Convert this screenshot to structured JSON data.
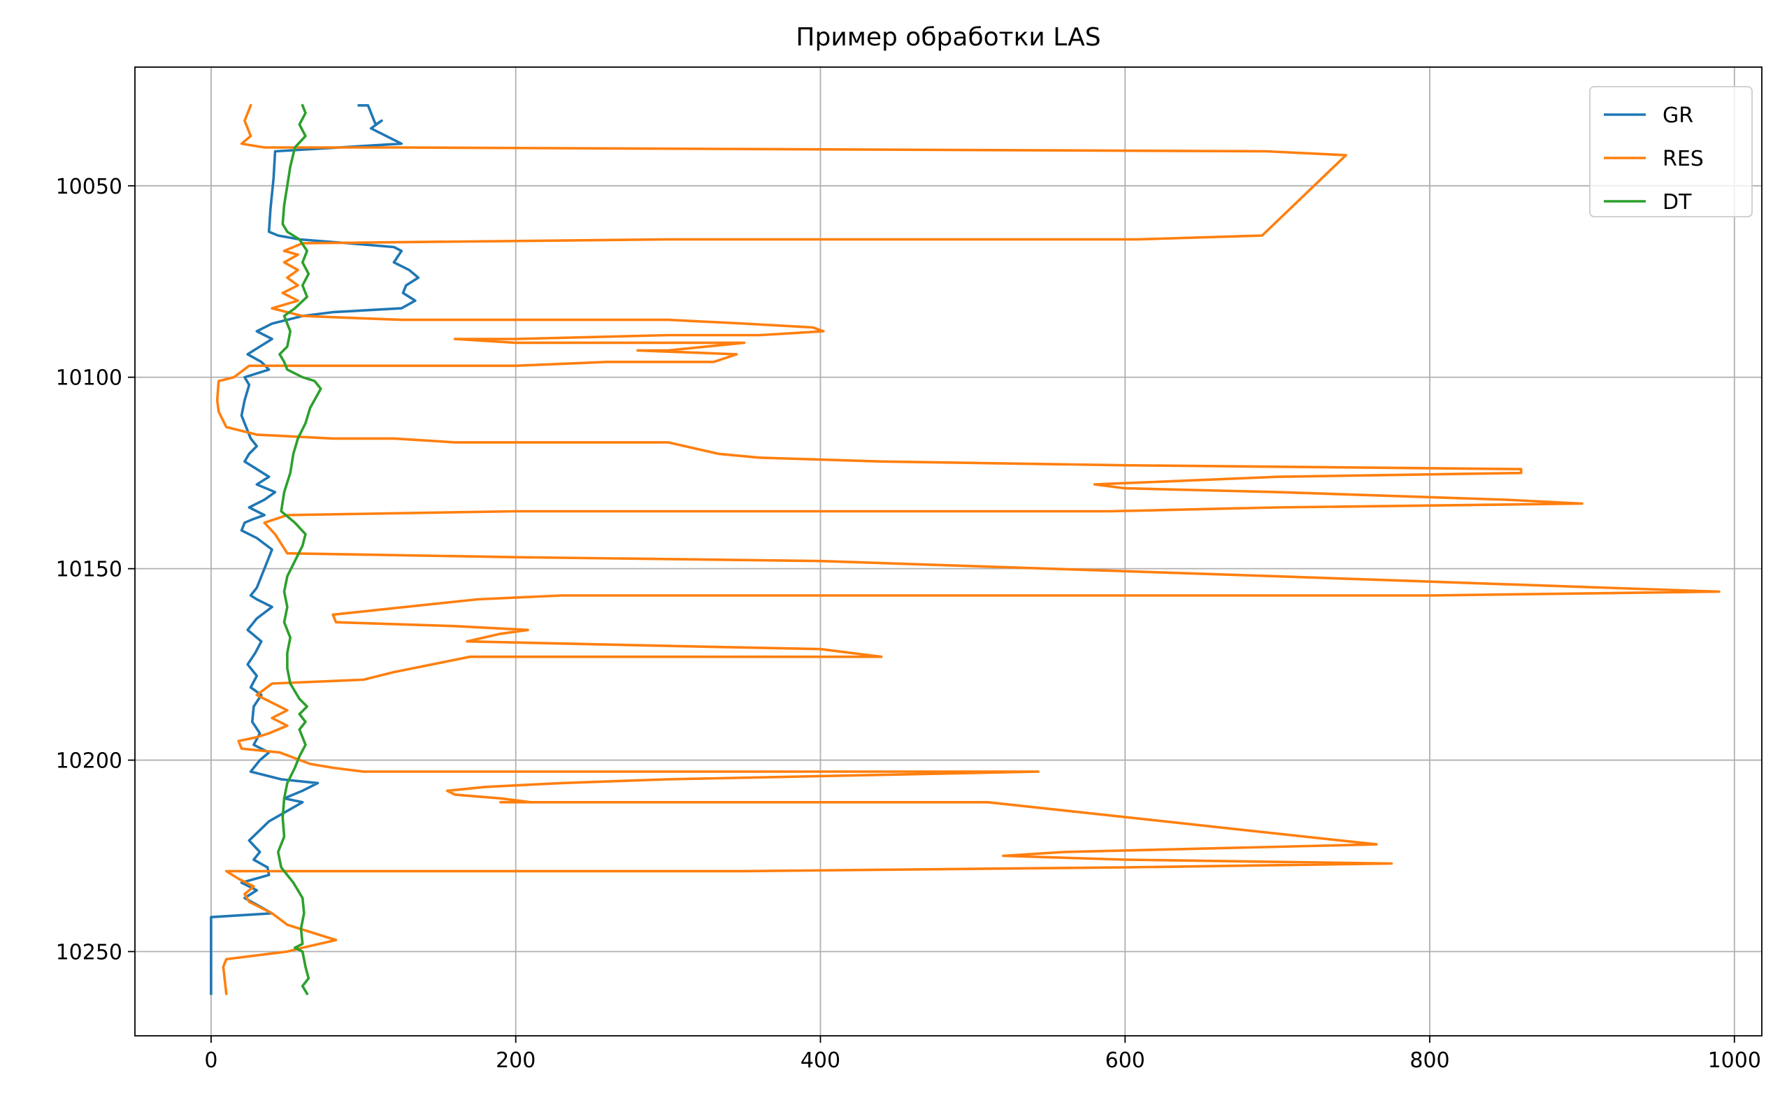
{
  "chart_data": {
    "type": "line",
    "title": "Пример обработки LAS",
    "xlabel": "",
    "ylabel": "",
    "xlim": [
      -50,
      1018
    ],
    "ylim": [
      10272,
      10019
    ],
    "y_inverted": true,
    "x_ticks": [
      0,
      200,
      400,
      600,
      800,
      1000
    ],
    "y_ticks": [
      10050,
      10100,
      10150,
      10200,
      10250
    ],
    "grid": true,
    "legend_position": "upper right",
    "colors": {
      "GR": "#1f77b4",
      "RES": "#ff7f0e",
      "DT": "#2ca02c",
      "grid": "#b0b0b0"
    },
    "series": [
      {
        "name": "GR",
        "points": [
          [
            97,
            10029
          ],
          [
            103,
            10029
          ],
          [
            108,
            10034
          ],
          [
            112,
            10033
          ],
          [
            105,
            10035
          ],
          [
            125,
            10039
          ],
          [
            42,
            10041
          ],
          [
            41,
            10048
          ],
          [
            40,
            10052
          ],
          [
            39,
            10056
          ],
          [
            38,
            10062
          ],
          [
            44,
            10063
          ],
          [
            58,
            10064
          ],
          [
            90,
            10065
          ],
          [
            120,
            10066
          ],
          [
            125,
            10067
          ],
          [
            120,
            10070
          ],
          [
            130,
            10072
          ],
          [
            136,
            10074
          ],
          [
            128,
            10076
          ],
          [
            126,
            10078
          ],
          [
            134,
            10080
          ],
          [
            125,
            10082
          ],
          [
            80,
            10083
          ],
          [
            60,
            10084
          ],
          [
            40,
            10086
          ],
          [
            30,
            10088
          ],
          [
            40,
            10090
          ],
          [
            32,
            10092
          ],
          [
            24,
            10094
          ],
          [
            33,
            10096
          ],
          [
            38,
            10098
          ],
          [
            30,
            10099
          ],
          [
            22,
            10100
          ],
          [
            25,
            10102
          ],
          [
            22,
            10106
          ],
          [
            20,
            10110
          ],
          [
            24,
            10114
          ],
          [
            26,
            10116
          ],
          [
            30,
            10118
          ],
          [
            25,
            10120
          ],
          [
            22,
            10122
          ],
          [
            30,
            10124
          ],
          [
            38,
            10126
          ],
          [
            30,
            10128
          ],
          [
            42,
            10130
          ],
          [
            35,
            10132
          ],
          [
            25,
            10134
          ],
          [
            35,
            10136
          ],
          [
            28,
            10137
          ],
          [
            22,
            10138
          ],
          [
            20,
            10140
          ],
          [
            30,
            10142
          ],
          [
            40,
            10145
          ],
          [
            35,
            10150
          ],
          [
            30,
            10155
          ],
          [
            26,
            10157
          ],
          [
            30,
            10158
          ],
          [
            40,
            10160
          ],
          [
            30,
            10163
          ],
          [
            24,
            10166
          ],
          [
            33,
            10169
          ],
          [
            29,
            10172
          ],
          [
            24,
            10175
          ],
          [
            30,
            10178
          ],
          [
            26,
            10181
          ],
          [
            33,
            10183
          ],
          [
            28,
            10186
          ],
          [
            27,
            10190
          ],
          [
            32,
            10193
          ],
          [
            28,
            10196
          ],
          [
            38,
            10198
          ],
          [
            32,
            10200
          ],
          [
            26,
            10203
          ],
          [
            46,
            10205
          ],
          [
            70,
            10206
          ],
          [
            60,
            10208
          ],
          [
            48,
            10210
          ],
          [
            60,
            10211
          ],
          [
            38,
            10216
          ],
          [
            25,
            10221
          ],
          [
            32,
            10224
          ],
          [
            28,
            10226
          ],
          [
            37,
            10228
          ],
          [
            38,
            10230
          ],
          [
            20,
            10232
          ],
          [
            30,
            10234
          ],
          [
            22,
            10236
          ],
          [
            40,
            10240
          ],
          [
            0,
            10241
          ],
          [
            0,
            10250
          ],
          [
            0,
            10261
          ]
        ]
      },
      {
        "name": "RES",
        "points": [
          [
            26,
            10029
          ],
          [
            22,
            10033
          ],
          [
            26,
            10037
          ],
          [
            20,
            10039
          ],
          [
            35,
            10040
          ],
          [
            120,
            10040
          ],
          [
            693,
            10041
          ],
          [
            745,
            10042
          ],
          [
            690,
            10063
          ],
          [
            608,
            10064
          ],
          [
            300,
            10064
          ],
          [
            60,
            10065
          ],
          [
            48,
            10067
          ],
          [
            57,
            10068
          ],
          [
            48,
            10070
          ],
          [
            57,
            10072
          ],
          [
            50,
            10074
          ],
          [
            57,
            10076
          ],
          [
            47,
            10078
          ],
          [
            57,
            10080
          ],
          [
            40,
            10082
          ],
          [
            60,
            10084
          ],
          [
            125,
            10085
          ],
          [
            300,
            10085
          ],
          [
            350,
            10086
          ],
          [
            395,
            10087
          ],
          [
            402,
            10088
          ],
          [
            360,
            10089
          ],
          [
            300,
            10089
          ],
          [
            200,
            10090
          ],
          [
            160,
            10090
          ],
          [
            200,
            10091
          ],
          [
            350,
            10091
          ],
          [
            300,
            10093
          ],
          [
            280,
            10093
          ],
          [
            345,
            10094
          ],
          [
            330,
            10096
          ],
          [
            260,
            10096
          ],
          [
            200,
            10097
          ],
          [
            98,
            10097
          ],
          [
            50,
            10097
          ],
          [
            25,
            10097
          ],
          [
            15,
            10100
          ],
          [
            5,
            10101
          ],
          [
            4,
            10106
          ],
          [
            5,
            10109
          ],
          [
            10,
            10113
          ],
          [
            30,
            10115
          ],
          [
            80,
            10116
          ],
          [
            120,
            10116
          ],
          [
            160,
            10117
          ],
          [
            300,
            10117
          ],
          [
            333,
            10120
          ],
          [
            360,
            10121
          ],
          [
            440,
            10122
          ],
          [
            600,
            10123
          ],
          [
            860,
            10124
          ],
          [
            860,
            10125
          ],
          [
            700,
            10126
          ],
          [
            580,
            10128
          ],
          [
            600,
            10129
          ],
          [
            700,
            10130
          ],
          [
            850,
            10132
          ],
          [
            900,
            10133
          ],
          [
            700,
            10134
          ],
          [
            590,
            10135
          ],
          [
            500,
            10135
          ],
          [
            200,
            10135
          ],
          [
            50,
            10136
          ],
          [
            35,
            10138
          ],
          [
            42,
            10141
          ],
          [
            50,
            10146
          ],
          [
            200,
            10147
          ],
          [
            400,
            10148
          ],
          [
            700,
            10152
          ],
          [
            990,
            10156
          ],
          [
            800,
            10157
          ],
          [
            500,
            10157
          ],
          [
            230,
            10157
          ],
          [
            175,
            10158
          ],
          [
            80,
            10162
          ],
          [
            82,
            10164
          ],
          [
            160,
            10165
          ],
          [
            208,
            10166
          ],
          [
            190,
            10167
          ],
          [
            168,
            10169
          ],
          [
            280,
            10170
          ],
          [
            400,
            10171
          ],
          [
            440,
            10173
          ],
          [
            340,
            10173
          ],
          [
            170,
            10173
          ],
          [
            120,
            10177
          ],
          [
            100,
            10179
          ],
          [
            40,
            10180
          ],
          [
            30,
            10183
          ],
          [
            40,
            10185
          ],
          [
            50,
            10187
          ],
          [
            40,
            10189
          ],
          [
            50,
            10191
          ],
          [
            38,
            10193
          ],
          [
            30,
            10194
          ],
          [
            18,
            10195
          ],
          [
            20,
            10197
          ],
          [
            45,
            10198
          ],
          [
            65,
            10201
          ],
          [
            80,
            10202
          ],
          [
            100,
            10203
          ],
          [
            200,
            10203
          ],
          [
            400,
            10203
          ],
          [
            543,
            10203
          ],
          [
            300,
            10205
          ],
          [
            230,
            10206
          ],
          [
            180,
            10207
          ],
          [
            155,
            10208
          ],
          [
            160,
            10209
          ],
          [
            190,
            10210
          ],
          [
            210,
            10211
          ],
          [
            200,
            10211
          ],
          [
            190,
            10211
          ],
          [
            510,
            10211
          ],
          [
            765,
            10222
          ],
          [
            560,
            10224
          ],
          [
            520,
            10225
          ],
          [
            600,
            10226
          ],
          [
            775,
            10227
          ],
          [
            600,
            10228
          ],
          [
            350,
            10229
          ],
          [
            130,
            10229
          ],
          [
            30,
            10229
          ],
          [
            10,
            10229
          ],
          [
            18,
            10231
          ],
          [
            28,
            10233
          ],
          [
            22,
            10235
          ],
          [
            25,
            10237
          ],
          [
            40,
            10240
          ],
          [
            50,
            10243
          ],
          [
            82,
            10247
          ],
          [
            60,
            10249
          ],
          [
            50,
            10250
          ],
          [
            10,
            10252
          ],
          [
            8,
            10254
          ],
          [
            10,
            10261
          ]
        ]
      },
      {
        "name": "DT",
        "points": [
          [
            60,
            10029
          ],
          [
            62,
            10031
          ],
          [
            58,
            10034
          ],
          [
            62,
            10037
          ],
          [
            55,
            10040
          ],
          [
            52,
            10045
          ],
          [
            50,
            10050
          ],
          [
            48,
            10055
          ],
          [
            47,
            10060
          ],
          [
            50,
            10062
          ],
          [
            58,
            10064
          ],
          [
            63,
            10067
          ],
          [
            60,
            10070
          ],
          [
            64,
            10073
          ],
          [
            60,
            10076
          ],
          [
            63,
            10079
          ],
          [
            55,
            10082
          ],
          [
            48,
            10084
          ],
          [
            52,
            10088
          ],
          [
            50,
            10092
          ],
          [
            45,
            10094
          ],
          [
            48,
            10096
          ],
          [
            50,
            10098
          ],
          [
            60,
            10100
          ],
          [
            68,
            10101
          ],
          [
            72,
            10103
          ],
          [
            65,
            10108
          ],
          [
            62,
            10112
          ],
          [
            57,
            10116
          ],
          [
            54,
            10120
          ],
          [
            52,
            10125
          ],
          [
            48,
            10130
          ],
          [
            46,
            10135
          ],
          [
            55,
            10138
          ],
          [
            62,
            10141
          ],
          [
            60,
            10144
          ],
          [
            55,
            10148
          ],
          [
            50,
            10152
          ],
          [
            48,
            10156
          ],
          [
            50,
            10160
          ],
          [
            48,
            10164
          ],
          [
            52,
            10168
          ],
          [
            50,
            10172
          ],
          [
            50,
            10176
          ],
          [
            52,
            10180
          ],
          [
            58,
            10184
          ],
          [
            63,
            10186
          ],
          [
            58,
            10188
          ],
          [
            62,
            10190
          ],
          [
            58,
            10192
          ],
          [
            62,
            10196
          ],
          [
            58,
            10199
          ],
          [
            55,
            10202
          ],
          [
            50,
            10206
          ],
          [
            48,
            10210
          ],
          [
            47,
            10215
          ],
          [
            48,
            10220
          ],
          [
            44,
            10224
          ],
          [
            46,
            10228
          ],
          [
            54,
            10232
          ],
          [
            60,
            10236
          ],
          [
            61,
            10240
          ],
          [
            59,
            10244
          ],
          [
            60,
            10248
          ],
          [
            55,
            10249
          ],
          [
            60,
            10250
          ],
          [
            62,
            10254
          ],
          [
            64,
            10257
          ],
          [
            60,
            10259
          ],
          [
            63,
            10261
          ]
        ]
      }
    ]
  }
}
